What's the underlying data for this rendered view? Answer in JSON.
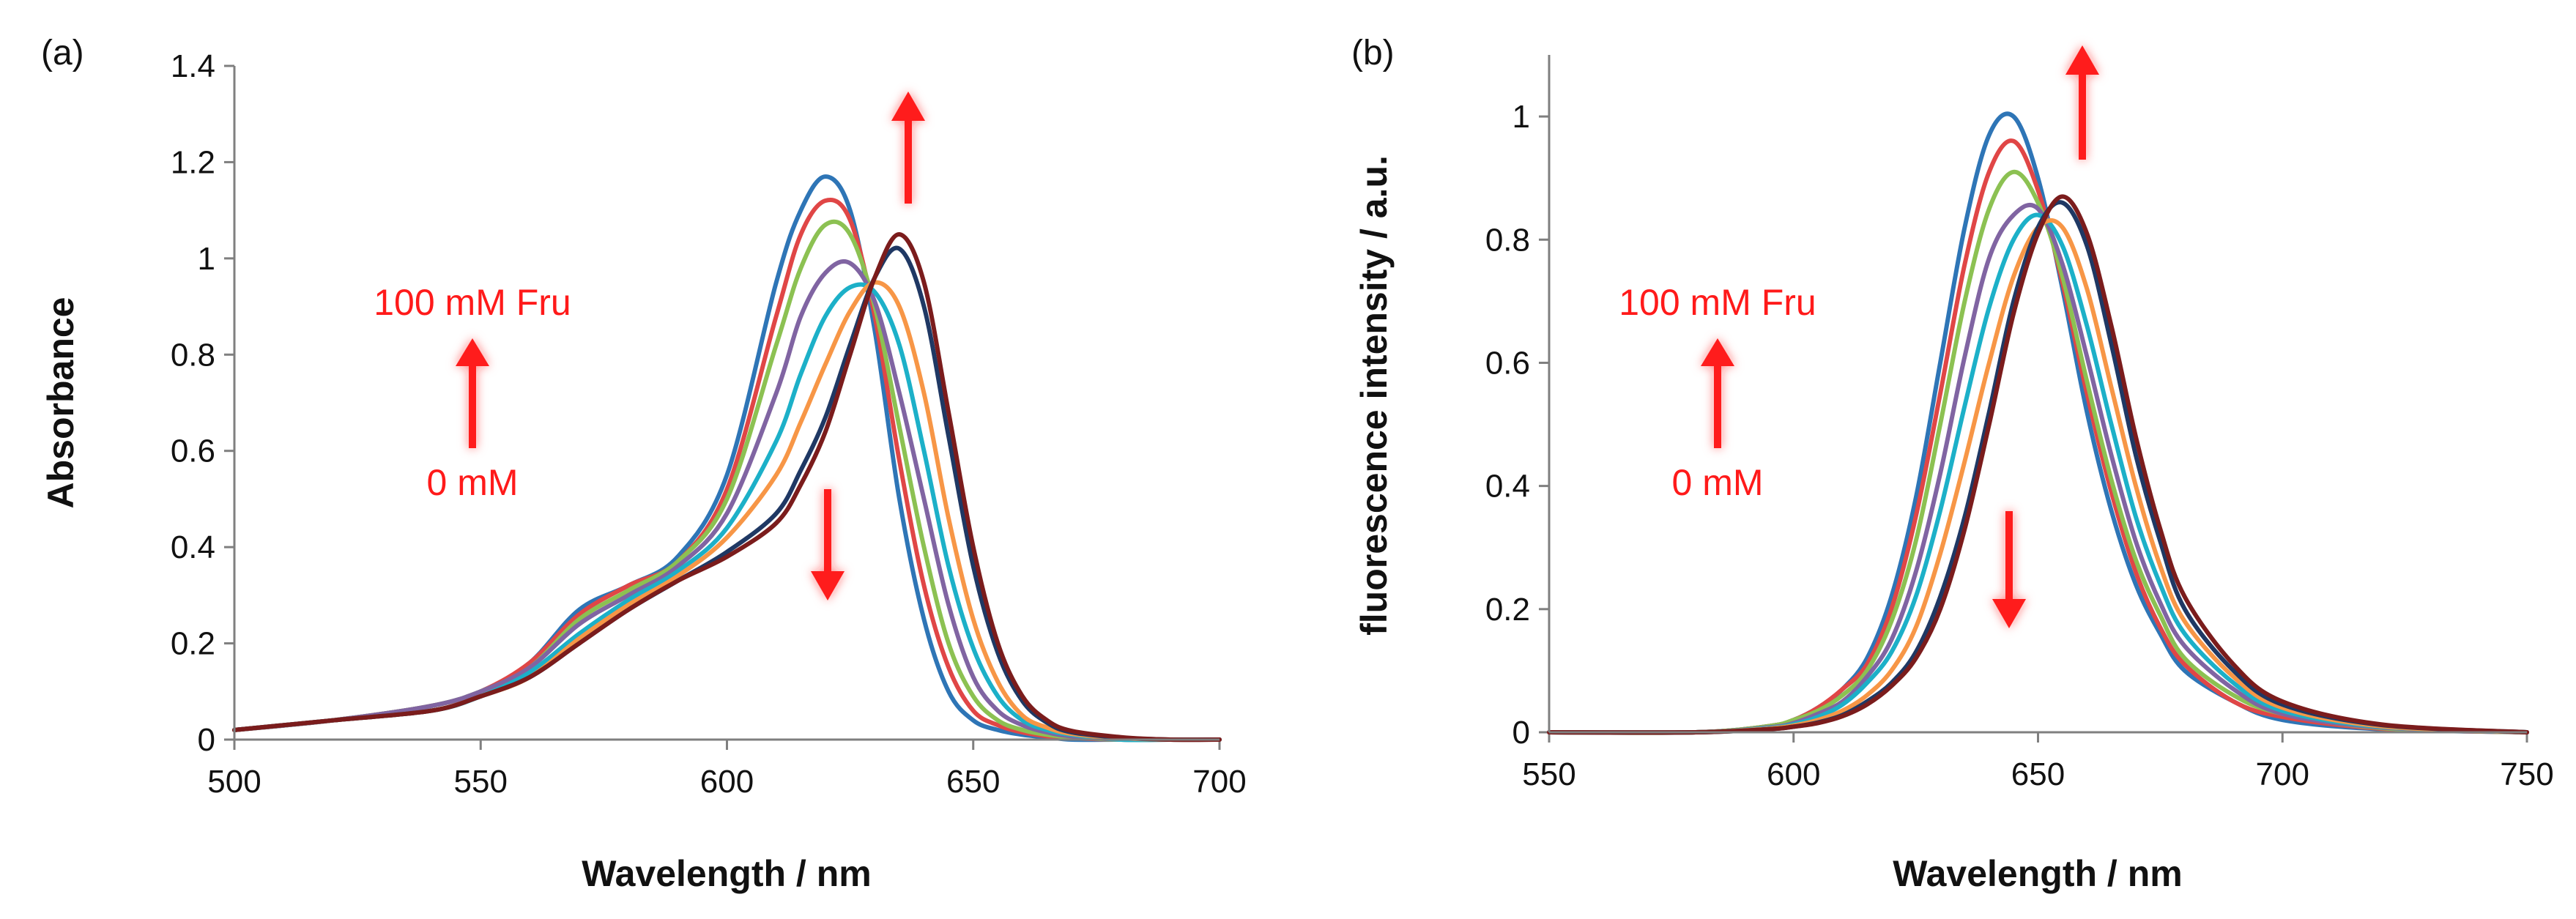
{
  "colors": {
    "annotation": "#ff1a1a",
    "axis": "#7f7f7f",
    "series": [
      "#2e75b6",
      "#e04646",
      "#8cc152",
      "#8064a2",
      "#1cb0c8",
      "#f79646",
      "#1f3864",
      "#7b1c1c"
    ]
  },
  "chart_data": [
    {
      "type": "line",
      "panel_label": "(a)",
      "xlabel": "Wavelength / nm",
      "ylabel": "Absorbance",
      "xlim": [
        500,
        700
      ],
      "ylim": [
        0,
        1.4
      ],
      "x_ticks": [
        "500",
        "550",
        "600",
        "650",
        "700"
      ],
      "y_ticks": [
        "0",
        "0.2",
        "0.4",
        "0.6",
        "0.8",
        "1",
        "1.2",
        "1.4"
      ],
      "annotations": {
        "top": "100 mM Fru",
        "bottom": "0 mM"
      },
      "x": [
        500,
        520,
        540,
        550,
        560,
        570,
        580,
        590,
        600,
        610,
        615,
        620,
        625,
        630,
        635,
        640,
        645,
        650,
        655,
        660,
        665,
        670,
        680,
        690,
        700
      ],
      "series": [
        {
          "values": [
            0.02,
            0.04,
            0.07,
            0.1,
            0.16,
            0.27,
            0.32,
            0.38,
            0.55,
            0.95,
            1.1,
            1.17,
            1.1,
            0.85,
            0.5,
            0.25,
            0.1,
            0.04,
            0.02,
            0.01,
            0.005,
            0.0,
            0.0,
            0.0,
            0.0
          ]
        },
        {
          "values": [
            0.02,
            0.04,
            0.07,
            0.1,
            0.16,
            0.26,
            0.32,
            0.37,
            0.52,
            0.88,
            1.05,
            1.12,
            1.08,
            0.88,
            0.58,
            0.32,
            0.15,
            0.06,
            0.03,
            0.015,
            0.007,
            0.003,
            0.0,
            0.0,
            0.0
          ]
        },
        {
          "values": [
            0.02,
            0.04,
            0.07,
            0.1,
            0.15,
            0.25,
            0.31,
            0.37,
            0.5,
            0.82,
            0.98,
            1.07,
            1.05,
            0.9,
            0.65,
            0.4,
            0.2,
            0.09,
            0.04,
            0.02,
            0.01,
            0.005,
            0.0,
            0.0,
            0.0
          ]
        },
        {
          "values": [
            0.02,
            0.04,
            0.07,
            0.1,
            0.15,
            0.24,
            0.3,
            0.36,
            0.47,
            0.72,
            0.88,
            0.97,
            0.99,
            0.91,
            0.72,
            0.5,
            0.28,
            0.13,
            0.06,
            0.03,
            0.015,
            0.007,
            0.0,
            0.0,
            0.0
          ]
        },
        {
          "values": [
            0.02,
            0.04,
            0.06,
            0.09,
            0.14,
            0.22,
            0.29,
            0.35,
            0.44,
            0.62,
            0.76,
            0.88,
            0.94,
            0.93,
            0.82,
            0.6,
            0.36,
            0.19,
            0.09,
            0.04,
            0.02,
            0.01,
            0.0,
            0.0,
            0.0
          ]
        },
        {
          "values": [
            0.02,
            0.04,
            0.06,
            0.09,
            0.13,
            0.21,
            0.28,
            0.34,
            0.42,
            0.55,
            0.66,
            0.78,
            0.89,
            0.95,
            0.9,
            0.72,
            0.46,
            0.25,
            0.12,
            0.05,
            0.025,
            0.012,
            0.003,
            0.0,
            0.0
          ]
        },
        {
          "values": [
            0.02,
            0.04,
            0.06,
            0.09,
            0.13,
            0.2,
            0.27,
            0.33,
            0.39,
            0.47,
            0.56,
            0.67,
            0.82,
            0.96,
            1.02,
            0.9,
            0.63,
            0.36,
            0.18,
            0.08,
            0.035,
            0.015,
            0.004,
            0.0,
            0.0
          ]
        },
        {
          "values": [
            0.02,
            0.04,
            0.06,
            0.09,
            0.13,
            0.2,
            0.27,
            0.33,
            0.38,
            0.45,
            0.53,
            0.64,
            0.8,
            0.96,
            1.05,
            0.95,
            0.68,
            0.4,
            0.2,
            0.09,
            0.04,
            0.018,
            0.005,
            0.0,
            0.0
          ]
        }
      ]
    },
    {
      "type": "line",
      "panel_label": "(b)",
      "xlabel": "Wavelength / nm",
      "ylabel": "fluorescence intensity / a.u.",
      "xlim": [
        550,
        750
      ],
      "ylim": [
        0,
        1.1
      ],
      "x_ticks": [
        "550",
        "600",
        "650",
        "700",
        "750"
      ],
      "y_ticks": [
        "0",
        "0.2",
        "0.4",
        "0.6",
        "0.8",
        "1"
      ],
      "annotations": {
        "top": "100 mM Fru",
        "bottom": "0 mM"
      },
      "x": [
        550,
        580,
        595,
        600,
        605,
        610,
        615,
        620,
        625,
        630,
        635,
        640,
        645,
        650,
        655,
        660,
        665,
        670,
        675,
        680,
        690,
        700,
        720,
        750
      ],
      "series": [
        {
          "values": [
            0.0,
            0.0,
            0.01,
            0.02,
            0.04,
            0.07,
            0.12,
            0.22,
            0.38,
            0.6,
            0.82,
            0.97,
            1.0,
            0.9,
            0.72,
            0.52,
            0.36,
            0.24,
            0.16,
            0.1,
            0.05,
            0.02,
            0.005,
            0.0
          ]
        },
        {
          "values": [
            0.0,
            0.0,
            0.01,
            0.02,
            0.04,
            0.07,
            0.11,
            0.2,
            0.35,
            0.55,
            0.76,
            0.91,
            0.96,
            0.88,
            0.73,
            0.55,
            0.39,
            0.26,
            0.17,
            0.11,
            0.05,
            0.025,
            0.006,
            0.0
          ]
        },
        {
          "values": [
            0.0,
            0.0,
            0.01,
            0.02,
            0.035,
            0.06,
            0.1,
            0.18,
            0.31,
            0.5,
            0.7,
            0.85,
            0.91,
            0.86,
            0.74,
            0.57,
            0.41,
            0.28,
            0.19,
            0.12,
            0.06,
            0.03,
            0.007,
            0.0
          ]
        },
        {
          "values": [
            0.0,
            0.0,
            0.008,
            0.015,
            0.03,
            0.05,
            0.09,
            0.15,
            0.26,
            0.42,
            0.61,
            0.77,
            0.84,
            0.85,
            0.76,
            0.61,
            0.45,
            0.31,
            0.21,
            0.14,
            0.07,
            0.03,
            0.008,
            0.0
          ]
        },
        {
          "values": [
            0.0,
            0.0,
            0.007,
            0.013,
            0.025,
            0.045,
            0.08,
            0.13,
            0.22,
            0.36,
            0.53,
            0.69,
            0.8,
            0.84,
            0.79,
            0.66,
            0.5,
            0.35,
            0.24,
            0.16,
            0.08,
            0.035,
            0.009,
            0.0
          ]
        },
        {
          "values": [
            0.0,
            0.0,
            0.006,
            0.011,
            0.02,
            0.035,
            0.06,
            0.1,
            0.17,
            0.29,
            0.44,
            0.6,
            0.74,
            0.82,
            0.82,
            0.72,
            0.56,
            0.4,
            0.27,
            0.18,
            0.09,
            0.04,
            0.01,
            0.0
          ]
        },
        {
          "values": [
            0.0,
            0.0,
            0.005,
            0.009,
            0.016,
            0.028,
            0.05,
            0.08,
            0.13,
            0.22,
            0.35,
            0.52,
            0.7,
            0.82,
            0.86,
            0.79,
            0.63,
            0.45,
            0.31,
            0.2,
            0.1,
            0.045,
            0.012,
            0.0
          ]
        },
        {
          "values": [
            0.0,
            0.0,
            0.005,
            0.009,
            0.015,
            0.026,
            0.045,
            0.075,
            0.12,
            0.2,
            0.33,
            0.5,
            0.68,
            0.81,
            0.87,
            0.81,
            0.66,
            0.48,
            0.33,
            0.22,
            0.11,
            0.05,
            0.013,
            0.0
          ]
        }
      ]
    }
  ]
}
